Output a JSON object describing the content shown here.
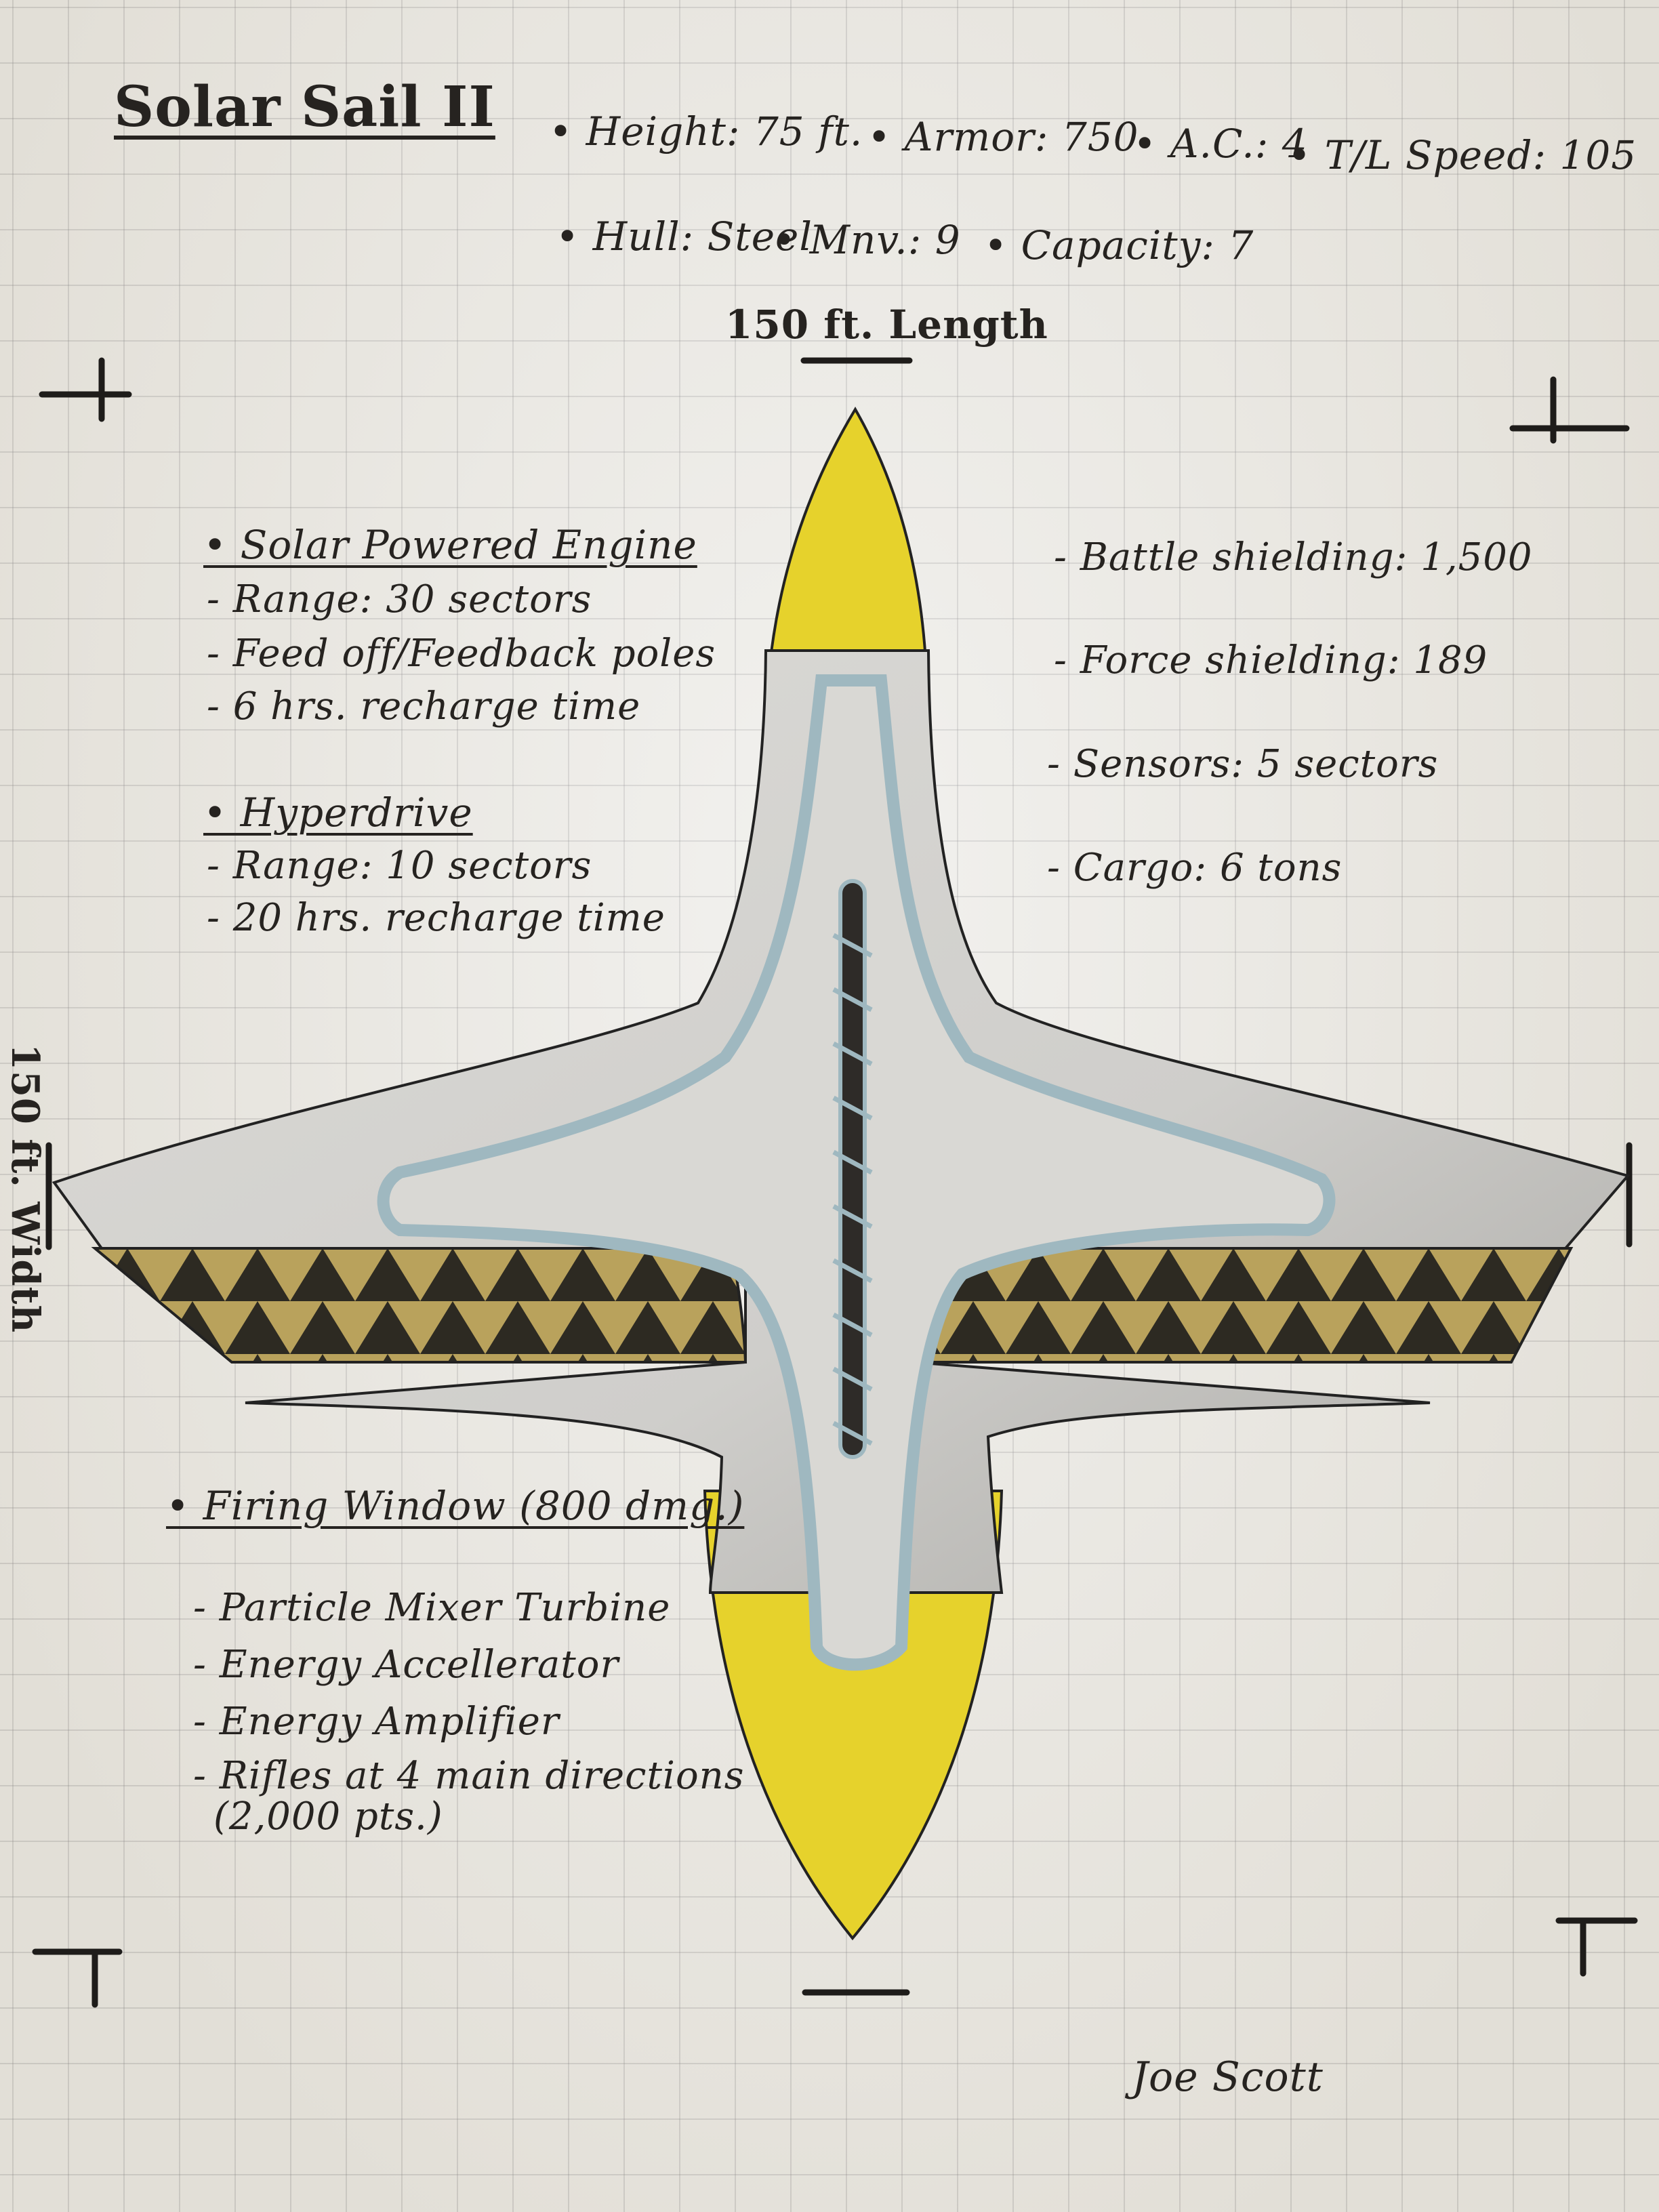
{
  "title": "Solar Sail II",
  "stats": {
    "height": "• Height: 75 ft.",
    "armor": "• Armor: 750",
    "ac": "• A.C.: 4",
    "speed": "• T/L Speed: 105",
    "hull": "• Hull: Steel",
    "mnv": "• Mnv.: 9",
    "capacity": "• Capacity: 7"
  },
  "length_label": "150 ft. Length",
  "width_label": "150 ft. Width",
  "left_notes": {
    "engine_heading": "• Solar Powered Engine",
    "engine_items": [
      "- Range: 30 sectors",
      "- Feed off/Feedback poles",
      "- 6 hrs. recharge time"
    ],
    "hyper_heading": "• Hyperdrive",
    "hyper_items": [
      "- Range: 10 sectors",
      "- 20 hrs. recharge time"
    ]
  },
  "right_notes": [
    "- Battle shielding: 1,500",
    "- Force shielding: 189",
    "- Sensors: 5 sectors",
    "- Cargo: 6 tons"
  ],
  "weapons": {
    "heading": "• Firing Window (800 dmg.)",
    "items": [
      "- Particle Mixer Turbine",
      "- Energy Accellerator",
      "- Energy Amplifier",
      "- Rifles at 4 main directions",
      "(2,000 pts.)"
    ]
  },
  "signature": "Joe Scott",
  "colors": {
    "hull": "#d6d5d1",
    "hull_shade": "#b9b8b4",
    "trim": "#9fb8c0",
    "yellow": "#e6d22c",
    "band_dark": "#2d2a22",
    "band_gold": "#b9a25c"
  }
}
